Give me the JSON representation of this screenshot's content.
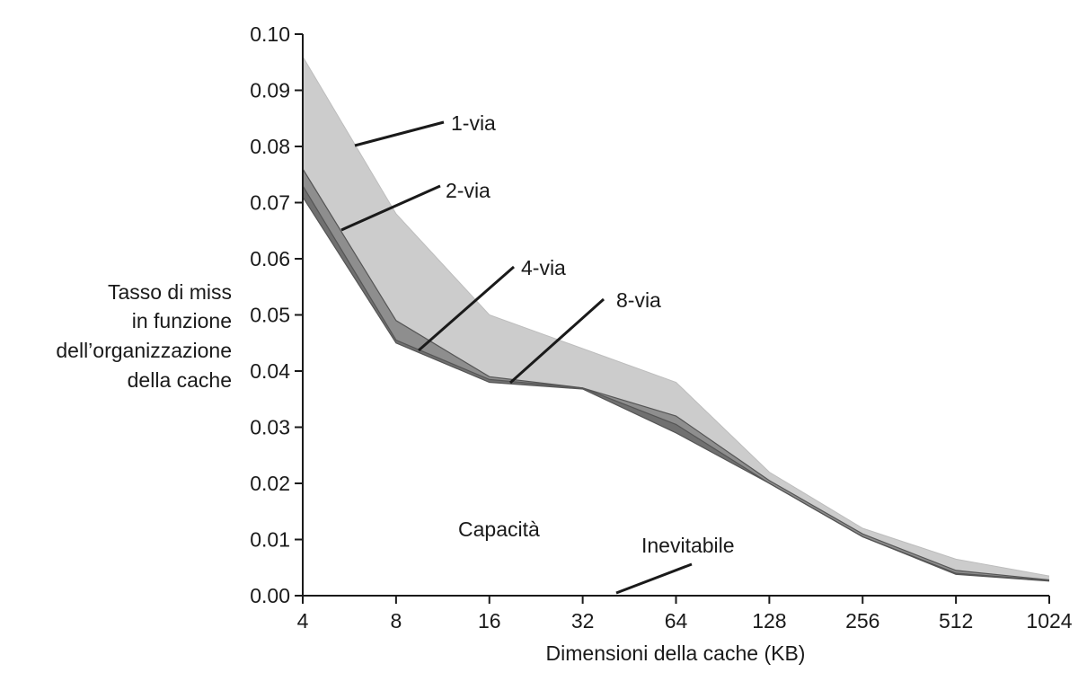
{
  "chart_data": {
    "type": "area",
    "xlabel": "Dimensioni della cache (KB)",
    "ylabel_lines": [
      "Tasso di miss",
      "in funzione",
      "dell’organizzazione",
      "della cache"
    ],
    "x_categories": [
      "4",
      "8",
      "16",
      "32",
      "64",
      "128",
      "256",
      "512",
      "1024"
    ],
    "y_ticks": [
      "0.00",
      "0.01",
      "0.02",
      "0.03",
      "0.04",
      "0.05",
      "0.06",
      "0.07",
      "0.08",
      "0.09",
      "0.10"
    ],
    "ylim": [
      0,
      0.1
    ],
    "grid": false,
    "series": [
      {
        "name": "1-via",
        "values": [
          0.096,
          0.068,
          0.05,
          0.044,
          0.038,
          0.022,
          0.012,
          0.0065,
          0.0035
        ]
      },
      {
        "name": "2-via",
        "values": [
          0.076,
          0.049,
          0.039,
          0.037,
          0.032,
          0.0205,
          0.011,
          0.0045,
          0.0028
        ]
      },
      {
        "name": "4-via",
        "values": [
          0.073,
          0.0455,
          0.0385,
          0.037,
          0.0305,
          0.02,
          0.0105,
          0.004,
          0.0027
        ]
      },
      {
        "name": "8-via",
        "values": [
          0.071,
          0.045,
          0.038,
          0.0368,
          0.029,
          0.02,
          0.0105,
          0.0038,
          0.0026
        ]
      }
    ],
    "annotations": {
      "capacity": "Capacità",
      "compulsory": "Inevitabile"
    },
    "colors": {
      "band_1": "#cccccc",
      "band_2": "#8e8e8e",
      "band_3": "#707070",
      "band_4": "#595959",
      "ink": "#1a1a1a"
    }
  }
}
